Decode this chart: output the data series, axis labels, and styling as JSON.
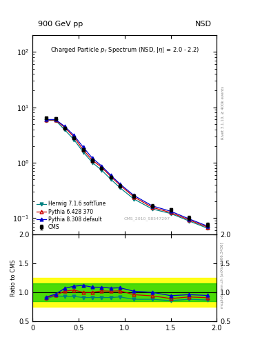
{
  "title_top_left": "900 GeV pp",
  "title_top_right": "NSD",
  "main_title": "Charged Particle p$_T$ Spectrum (NSD, |$\\eta$| = 2.0 - 2.2)",
  "watermark": "CMS_2010_S8547297",
  "right_label_main": "Rivet 3.1.10, ≥ 400k events",
  "right_label_ratio": "mcplots.cern.ch [arXiv:1306.3436]",
  "ylabel_ratio": "Ratio to CMS",
  "cms_x": [
    0.15,
    0.25,
    0.35,
    0.45,
    0.55,
    0.65,
    0.75,
    0.85,
    0.95,
    1.1,
    1.3,
    1.5,
    1.7,
    1.9
  ],
  "cms_y": [
    6.5,
    6.2,
    4.2,
    2.8,
    1.7,
    1.1,
    0.8,
    0.55,
    0.38,
    0.25,
    0.165,
    0.14,
    0.1,
    0.075
  ],
  "cms_yerr": [
    0.4,
    0.35,
    0.25,
    0.18,
    0.1,
    0.07,
    0.05,
    0.035,
    0.025,
    0.018,
    0.012,
    0.01,
    0.008,
    0.006
  ],
  "herwig_x": [
    0.15,
    0.25,
    0.35,
    0.45,
    0.55,
    0.65,
    0.75,
    0.85,
    0.95,
    1.1,
    1.3,
    1.5,
    1.7,
    1.9
  ],
  "herwig_y": [
    5.8,
    5.8,
    3.9,
    2.6,
    1.55,
    1.0,
    0.73,
    0.5,
    0.35,
    0.22,
    0.145,
    0.12,
    0.088,
    0.065
  ],
  "pythia6_x": [
    0.15,
    0.25,
    0.35,
    0.45,
    0.55,
    0.65,
    0.75,
    0.85,
    0.95,
    1.1,
    1.3,
    1.5,
    1.7,
    1.9
  ],
  "pythia6_y": [
    5.9,
    5.9,
    4.3,
    2.9,
    1.7,
    1.1,
    0.82,
    0.56,
    0.39,
    0.24,
    0.155,
    0.125,
    0.092,
    0.068
  ],
  "pythia8_x": [
    0.15,
    0.25,
    0.35,
    0.45,
    0.55,
    0.65,
    0.75,
    0.85,
    0.95,
    1.1,
    1.3,
    1.5,
    1.7,
    1.9
  ],
  "pythia8_y": [
    6.0,
    6.0,
    4.5,
    3.1,
    1.9,
    1.2,
    0.87,
    0.59,
    0.41,
    0.255,
    0.165,
    0.132,
    0.096,
    0.071
  ],
  "ratio_herwig": [
    0.89,
    0.94,
    0.93,
    0.93,
    0.91,
    0.91,
    0.91,
    0.91,
    0.92,
    0.88,
    0.88,
    0.857,
    0.88,
    0.867
  ],
  "ratio_pythia6": [
    0.91,
    0.95,
    1.02,
    1.04,
    1.0,
    1.0,
    1.025,
    1.02,
    1.026,
    0.96,
    0.939,
    0.893,
    0.92,
    0.907
  ],
  "ratio_pythia8": [
    0.92,
    0.97,
    1.07,
    1.107,
    1.12,
    1.09,
    1.088,
    1.073,
    1.079,
    1.02,
    1.0,
    0.943,
    0.96,
    0.947
  ],
  "color_herwig": "#008080",
  "color_pythia6": "#cc0000",
  "color_pythia8": "#0000cc",
  "color_cms": "#000000",
  "color_yellow": "#ffff00",
  "color_green": "#00cc00",
  "xlim": [
    0.0,
    2.0
  ],
  "ylim_main": [
    0.05,
    200
  ],
  "ylim_ratio": [
    0.5,
    2.0
  ],
  "xticks": [
    0.0,
    0.5,
    1.0,
    1.5,
    2.0
  ],
  "ratio_yticks": [
    0.5,
    1.0,
    1.5,
    2.0
  ],
  "main_yticks": [
    0.1,
    1.0,
    10.0,
    100.0
  ]
}
